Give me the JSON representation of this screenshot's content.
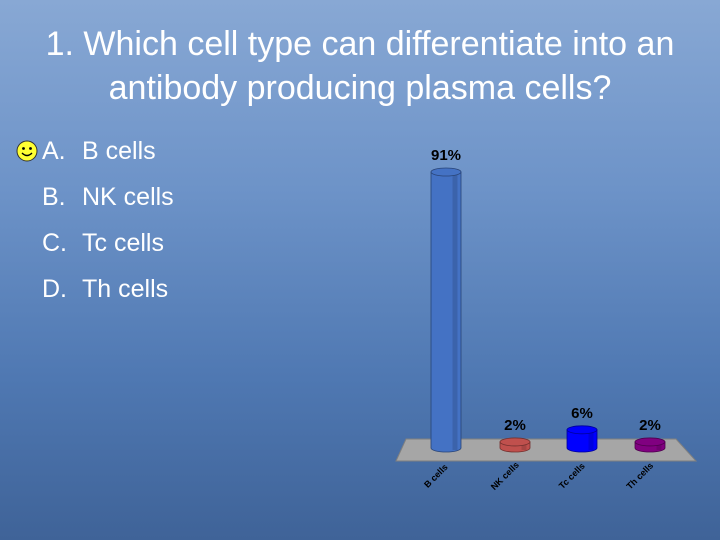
{
  "question": {
    "title": "1. Which cell type can differentiate into an antibody producing plasma cells?",
    "correct_marker_icon": "smiley-face-icon",
    "answers": [
      {
        "letter": "A.",
        "label": "B cells"
      },
      {
        "letter": "B.",
        "label": "NK cells"
      },
      {
        "letter": "C.",
        "label": "Tc cells"
      },
      {
        "letter": "D.",
        "label": "Th cells"
      }
    ]
  },
  "chart_data": {
    "type": "bar",
    "categories": [
      "B cells",
      "NK cells",
      "Tc cells",
      "Th cells"
    ],
    "values": [
      91,
      2,
      6,
      2
    ],
    "value_labels": [
      "91%",
      "2%",
      "6%",
      "2%"
    ],
    "colors": [
      "#4472c4",
      "#c0504d",
      "#0000ff",
      "#800080"
    ],
    "ylim": [
      0,
      100
    ],
    "grid": false,
    "style": "3d-cylinder"
  }
}
